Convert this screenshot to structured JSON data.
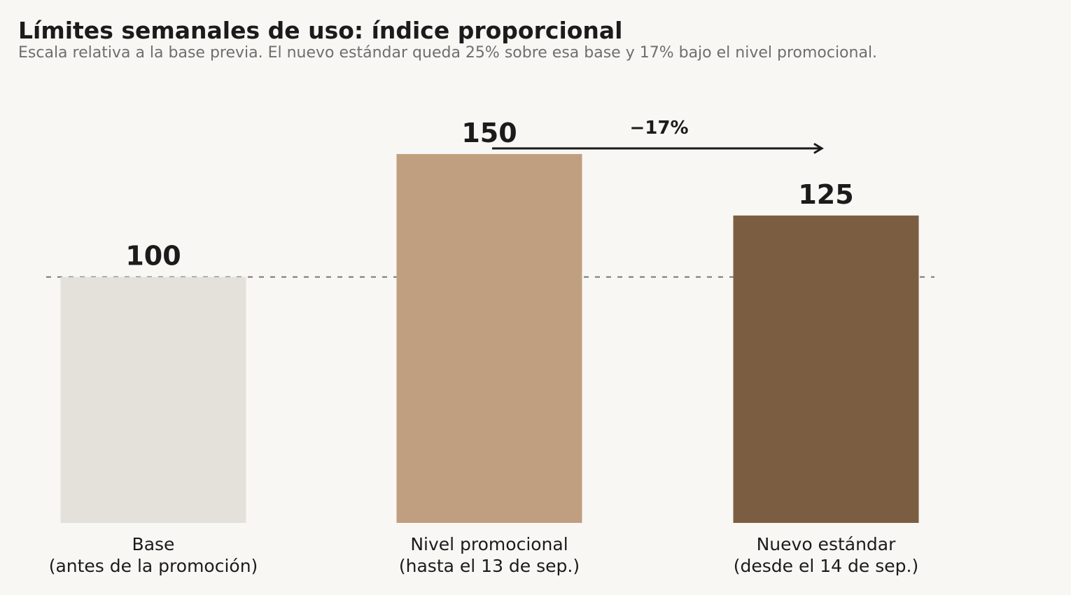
{
  "chart_data": {
    "type": "bar",
    "title": "Límites semanales de uso: índice proporcional",
    "subtitle": "Escala relativa a la base previa. El nuevo estándar queda 25% sobre esa base y 17% bajo el nivel promocional.",
    "categories": [
      [
        "Base",
        "(antes de la promoción)"
      ],
      [
        "Nivel promocional",
        "(hasta el 13 de sep.)"
      ],
      [
        "Nuevo estándar",
        "(desde el 14 de sep.)"
      ]
    ],
    "values": [
      100,
      150,
      125
    ],
    "value_labels": [
      "100",
      "150",
      "125"
    ],
    "bar_colors": [
      "#e4e1db",
      "#c09f80",
      "#7b5e41"
    ],
    "reference_line": {
      "value": 100,
      "style": "dashed",
      "color": "#707070"
    },
    "annotation": {
      "text": "−17%",
      "from_category": 1,
      "to_category": 2,
      "style": "arrow"
    },
    "ylim": [
      0,
      160
    ],
    "xlabel": "",
    "ylabel": "",
    "grid": false,
    "legend": "none"
  },
  "colors": {
    "background": "#f9f7f4",
    "text": "#1b1b1b",
    "subtitle": "#6e6e6e"
  }
}
